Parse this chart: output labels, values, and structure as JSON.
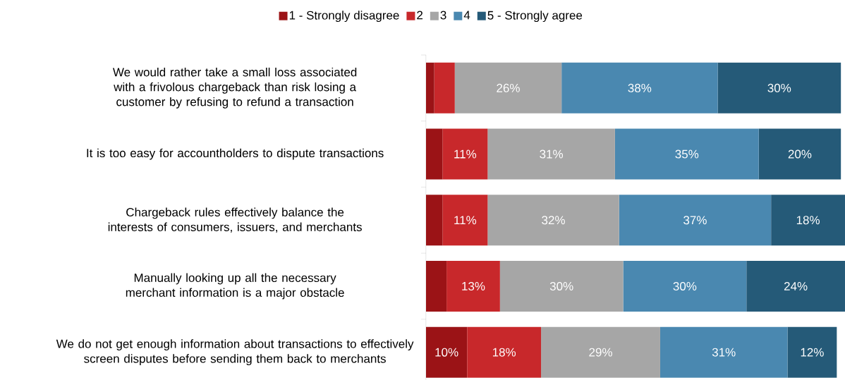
{
  "chart_data": {
    "type": "bar",
    "orientation": "horizontal",
    "stacked": true,
    "legend": "top",
    "categories": [
      "We would rather take a small loss associated with a frivolous chargeback than risk losing a customer by refusing to refund a transaction",
      "It is too easy for accountholders to dispute transactions",
      "Chargeback rules effectively balance the interests of consumers, issuers, and merchants",
      "Manually looking up all the necessary merchant information is a major obstacle",
      "We do not get enough information about transactions to effectively screen disputes before sending them back to merchants"
    ],
    "series": [
      {
        "name": "1 - Strongly disagree",
        "color": "#9b1316",
        "values": [
          2,
          4,
          4,
          5,
          10
        ],
        "value_labels": [
          null,
          null,
          null,
          null,
          "10%"
        ]
      },
      {
        "name": "2",
        "color": "#c8282b",
        "values": [
          5,
          11,
          11,
          13,
          18
        ],
        "value_labels": [
          null,
          "11%",
          "11%",
          "13%",
          "18%"
        ]
      },
      {
        "name": "3",
        "color": "#a6a6a6",
        "values": [
          26,
          31,
          32,
          30,
          29
        ],
        "value_labels": [
          "26%",
          "31%",
          "32%",
          "30%",
          "29%"
        ]
      },
      {
        "name": "4",
        "color": "#4a88b0",
        "values": [
          38,
          35,
          37,
          30,
          31
        ],
        "value_labels": [
          "38%",
          "35%",
          "37%",
          "30%",
          "31%"
        ]
      },
      {
        "name": "5 - Strongly agree",
        "color": "#255a78",
        "values": [
          30,
          20,
          18,
          24,
          12
        ],
        "value_labels": [
          "30%",
          "20%",
          "18%",
          "24%",
          "12%"
        ]
      }
    ]
  }
}
